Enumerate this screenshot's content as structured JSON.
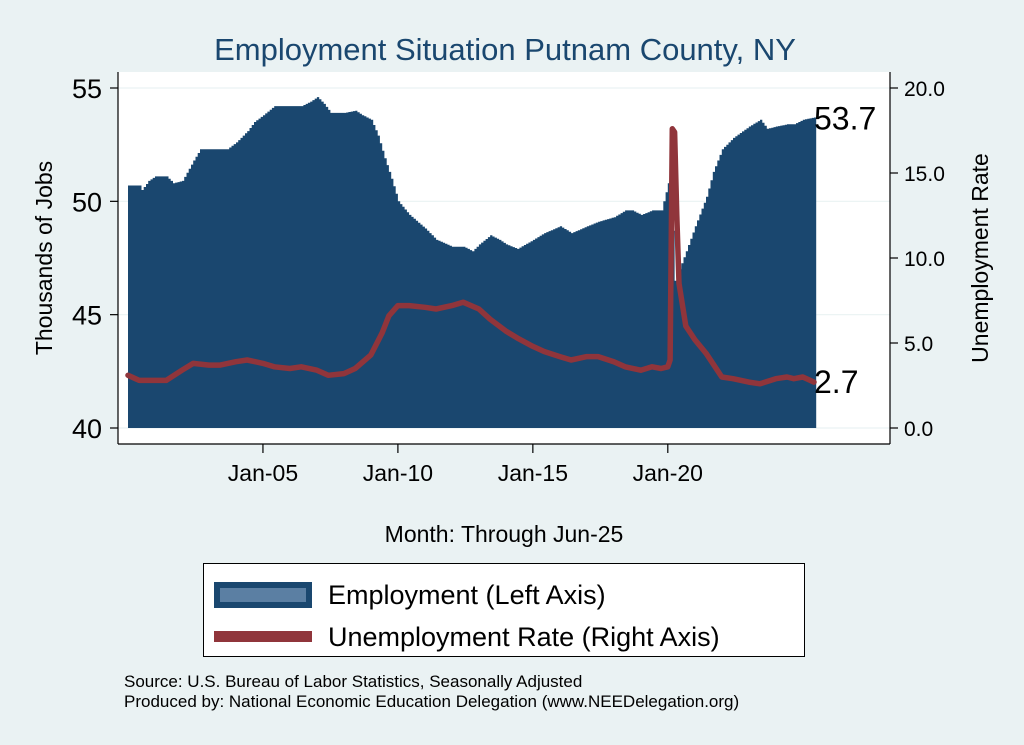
{
  "chart_data": {
    "type": "area+line (dual axis)",
    "title": "Employment Situation Putnam  County, NY",
    "xlabel": "Month: Through Jun-25",
    "ylabel_left": "Thousands of Jobs",
    "ylabel_right": "Unemployment Rate",
    "x_range": [
      "2000-01",
      "2025-06"
    ],
    "x_ticks": [
      "Jan-05",
      "Jan-10",
      "Jan-15",
      "Jan-20"
    ],
    "y_left_ticks": [
      "40",
      "45",
      "50",
      "55"
    ],
    "y_left_range": [
      40,
      55.5
    ],
    "y_right_ticks": [
      "0.0",
      "5.0",
      "10.0",
      "15.0",
      "20.0"
    ],
    "y_right_range": [
      0,
      20.5
    ],
    "grid": true,
    "legend_position": "bottom",
    "colors": {
      "employment": "#1A476F",
      "unemployment": "#90353B",
      "background": "#EAF2F3",
      "plot_bg": "#FFFFFF",
      "grid": "#EAF2F3"
    },
    "series": [
      {
        "name": "Employment (Left Axis)",
        "axis": "left",
        "style": "area",
        "points": [
          [
            "2000-01",
            50.7
          ],
          [
            "2000-06",
            50.7
          ],
          [
            "2000-07",
            50.5
          ],
          [
            "2000-10",
            50.9
          ],
          [
            "2001-01",
            51.1
          ],
          [
            "2001-06",
            51.1
          ],
          [
            "2001-09",
            50.8
          ],
          [
            "2002-01",
            50.9
          ],
          [
            "2002-06",
            51.8
          ],
          [
            "2002-09",
            52.3
          ],
          [
            "2003-01",
            52.3
          ],
          [
            "2003-06",
            52.3
          ],
          [
            "2003-09",
            52.3
          ],
          [
            "2004-01",
            52.6
          ],
          [
            "2004-06",
            53.1
          ],
          [
            "2004-09",
            53.5
          ],
          [
            "2005-01",
            53.8
          ],
          [
            "2005-06",
            54.2
          ],
          [
            "2006-01",
            54.2
          ],
          [
            "2006-06",
            54.2
          ],
          [
            "2006-10",
            54.4
          ],
          [
            "2007-01",
            54.6
          ],
          [
            "2007-04",
            54.3
          ],
          [
            "2007-07",
            53.9
          ],
          [
            "2008-01",
            53.9
          ],
          [
            "2008-06",
            54.0
          ],
          [
            "2008-09",
            53.8
          ],
          [
            "2009-01",
            53.6
          ],
          [
            "2009-04",
            52.9
          ],
          [
            "2009-07",
            51.9
          ],
          [
            "2009-10",
            51.0
          ],
          [
            "2010-01",
            50.0
          ],
          [
            "2010-06",
            49.4
          ],
          [
            "2011-01",
            48.8
          ],
          [
            "2011-06",
            48.3
          ],
          [
            "2012-01",
            48.0
          ],
          [
            "2012-06",
            48.0
          ],
          [
            "2012-10",
            47.8
          ],
          [
            "2013-01",
            48.1
          ],
          [
            "2013-06",
            48.5
          ],
          [
            "2013-10",
            48.3
          ],
          [
            "2014-01",
            48.1
          ],
          [
            "2014-06",
            47.9
          ],
          [
            "2015-01",
            48.3
          ],
          [
            "2015-06",
            48.6
          ],
          [
            "2016-01",
            48.9
          ],
          [
            "2016-06",
            48.6
          ],
          [
            "2017-01",
            48.9
          ],
          [
            "2017-06",
            49.1
          ],
          [
            "2018-01",
            49.3
          ],
          [
            "2018-06",
            49.6
          ],
          [
            "2018-09",
            49.6
          ],
          [
            "2019-01",
            49.4
          ],
          [
            "2019-06",
            49.6
          ],
          [
            "2019-10",
            49.6
          ],
          [
            "2020-01",
            50.8
          ],
          [
            "2020-02",
            50.9
          ],
          [
            "2020-04",
            46.5
          ],
          [
            "2020-06",
            47.0
          ],
          [
            "2020-09",
            47.8
          ],
          [
            "2021-01",
            48.9
          ],
          [
            "2021-06",
            50.2
          ],
          [
            "2021-09",
            51.3
          ],
          [
            "2022-01",
            52.3
          ],
          [
            "2022-06",
            52.8
          ],
          [
            "2023-01",
            53.3
          ],
          [
            "2023-06",
            53.6
          ],
          [
            "2023-09",
            53.2
          ],
          [
            "2024-01",
            53.3
          ],
          [
            "2024-06",
            53.4
          ],
          [
            "2024-09",
            53.4
          ],
          [
            "2025-01",
            53.6
          ],
          [
            "2025-06",
            53.7
          ]
        ]
      },
      {
        "name": "Unemployment Rate (Right Axis)",
        "axis": "right",
        "style": "line",
        "points": [
          [
            "2000-01",
            3.1
          ],
          [
            "2000-06",
            2.8
          ],
          [
            "2001-01",
            2.8
          ],
          [
            "2001-06",
            2.8
          ],
          [
            "2002-01",
            3.4
          ],
          [
            "2002-06",
            3.8
          ],
          [
            "2003-01",
            3.7
          ],
          [
            "2003-06",
            3.7
          ],
          [
            "2004-01",
            3.9
          ],
          [
            "2004-06",
            4.0
          ],
          [
            "2005-01",
            3.8
          ],
          [
            "2005-06",
            3.6
          ],
          [
            "2006-01",
            3.5
          ],
          [
            "2006-06",
            3.6
          ],
          [
            "2007-01",
            3.4
          ],
          [
            "2007-06",
            3.1
          ],
          [
            "2008-01",
            3.2
          ],
          [
            "2008-06",
            3.5
          ],
          [
            "2009-01",
            4.3
          ],
          [
            "2009-06",
            5.6
          ],
          [
            "2009-09",
            6.6
          ],
          [
            "2010-01",
            7.2
          ],
          [
            "2010-06",
            7.2
          ],
          [
            "2011-01",
            7.1
          ],
          [
            "2011-06",
            7.0
          ],
          [
            "2012-01",
            7.2
          ],
          [
            "2012-06",
            7.4
          ],
          [
            "2013-01",
            7.0
          ],
          [
            "2013-06",
            6.4
          ],
          [
            "2014-01",
            5.7
          ],
          [
            "2014-06",
            5.3
          ],
          [
            "2015-01",
            4.8
          ],
          [
            "2015-06",
            4.5
          ],
          [
            "2016-01",
            4.2
          ],
          [
            "2016-06",
            4.0
          ],
          [
            "2017-01",
            4.2
          ],
          [
            "2017-06",
            4.2
          ],
          [
            "2018-01",
            3.9
          ],
          [
            "2018-06",
            3.6
          ],
          [
            "2019-01",
            3.4
          ],
          [
            "2019-06",
            3.6
          ],
          [
            "2019-10",
            3.5
          ],
          [
            "2020-01",
            3.6
          ],
          [
            "2020-02",
            4.0
          ],
          [
            "2020-03",
            17.6
          ],
          [
            "2020-04",
            17.4
          ],
          [
            "2020-05",
            12.5
          ],
          [
            "2020-06",
            8.5
          ],
          [
            "2020-09",
            6.0
          ],
          [
            "2021-01",
            5.2
          ],
          [
            "2021-06",
            4.4
          ],
          [
            "2022-01",
            3.0
          ],
          [
            "2022-06",
            2.9
          ],
          [
            "2023-01",
            2.7
          ],
          [
            "2023-06",
            2.6
          ],
          [
            "2024-01",
            2.9
          ],
          [
            "2024-06",
            3.0
          ],
          [
            "2024-09",
            2.9
          ],
          [
            "2025-01",
            3.0
          ],
          [
            "2025-06",
            2.7
          ]
        ]
      }
    ],
    "annotations": [
      {
        "series": 0,
        "label": "53.7"
      },
      {
        "series": 1,
        "label": "2.7"
      }
    ]
  },
  "legend": {
    "items": [
      "Employment (Left Axis)",
      "Unemployment Rate (Right Axis)"
    ]
  },
  "footnotes": {
    "source": "Source: U.S. Bureau of Labor Statistics, Seasonally Adjusted",
    "produced": "Produced by: National Economic Education Delegation (www.NEEDelegation.org)"
  }
}
